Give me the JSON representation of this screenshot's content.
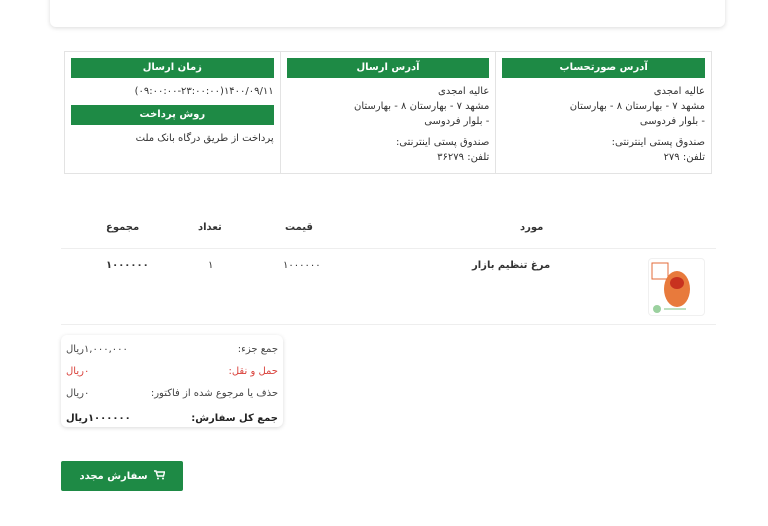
{
  "info": {
    "billing": {
      "title": "آدرس صورتحساب",
      "name": "عالیه امجدی",
      "address1": "مشهد      ۷ - بهارستان ۸ - بهارستان",
      "address2": "- بلوار فردوسی",
      "postbox": "صندوق پستی اینترنتی:",
      "phone": "تلفن: ۲۷۹"
    },
    "shipping": {
      "title": "آدرس ارسال",
      "name": "عالیه امجدی",
      "address1": "مشهد      ۷ - بهارستان ۸ - بهارستان",
      "address2": "- بلوار فردوسی",
      "postbox": "صندوق پستی اینترنتی:",
      "phone": "تلفن: ۳۶۲۷۹"
    },
    "delivery": {
      "title": "زمان ارسال",
      "value": "۱۴۰۰/۰۹/۱۱(۰۹:۰۰:۰۰-۲۳:۰۰:۰۰)",
      "payment_title": "روش پرداخت",
      "payment_value": "پرداخت از طریق درگاه بانک ملت"
    }
  },
  "table": {
    "headers": {
      "item": "مورد",
      "price": "قیمت",
      "qty": "تعداد",
      "total": "مجموع"
    },
    "rows": [
      {
        "name": "مرغ تنظیم بازار",
        "price": "۱۰۰۰۰۰۰",
        "qty": "۱",
        "total": "۱۰۰۰۰۰۰",
        "image_label": "تنظیم بازار"
      }
    ]
  },
  "totals": [
    {
      "label": "جمع جزء:",
      "value": "۱,۰۰۰,۰۰۰ریال"
    },
    {
      "label": "حمل و نقل:",
      "value": "۰ریال"
    },
    {
      "label": "حذف یا مرجوع شده از فاکتور:",
      "value": "۰ریال"
    },
    {
      "label": "جمع کل سفارش:",
      "value": "۱۰۰۰۰۰۰ریال"
    }
  ],
  "reorder_label": "سفارش مجدد",
  "colors": {
    "accent": "#1e8a45",
    "shipping_cost": "#d9403a"
  }
}
